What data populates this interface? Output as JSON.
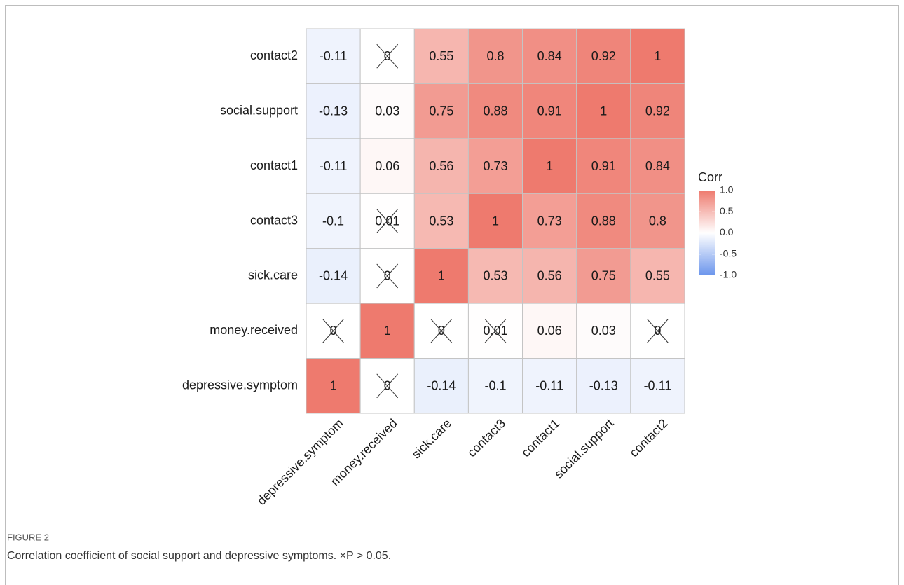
{
  "chart_data": {
    "type": "heatmap",
    "x": [
      "depressive.symptom",
      "money.received",
      "sick.care",
      "contact3",
      "contact1",
      "social.support",
      "contact2"
    ],
    "y": [
      "contact2",
      "social.support",
      "contact1",
      "contact3",
      "sick.care",
      "money.received",
      "depressive.symptom"
    ],
    "values": [
      [
        -0.11,
        0,
        0.55,
        0.8,
        0.84,
        0.92,
        1
      ],
      [
        -0.13,
        0.03,
        0.75,
        0.88,
        0.91,
        1,
        0.92
      ],
      [
        -0.11,
        0.06,
        0.56,
        0.73,
        1,
        0.91,
        0.84
      ],
      [
        -0.1,
        0.01,
        0.53,
        1,
        0.73,
        0.88,
        0.8
      ],
      [
        -0.14,
        0,
        1,
        0.53,
        0.56,
        0.75,
        0.55
      ],
      [
        0,
        1,
        0,
        0.01,
        0.06,
        0.03,
        0
      ],
      [
        1,
        0,
        -0.14,
        -0.1,
        -0.11,
        -0.13,
        -0.11
      ]
    ],
    "crossed": [
      [
        false,
        true,
        false,
        false,
        false,
        false,
        false
      ],
      [
        false,
        false,
        false,
        false,
        false,
        false,
        false
      ],
      [
        false,
        false,
        false,
        false,
        false,
        false,
        false
      ],
      [
        false,
        true,
        false,
        false,
        false,
        false,
        false
      ],
      [
        false,
        true,
        false,
        false,
        false,
        false,
        false
      ],
      [
        true,
        false,
        true,
        true,
        false,
        false,
        true
      ],
      [
        false,
        true,
        false,
        false,
        false,
        false,
        false
      ]
    ],
    "colors": {
      "low": "#6b95ec",
      "mid": "#ffffff",
      "high": "#ee7a6e"
    },
    "legend_title": "Corr",
    "clim": [
      -1,
      1
    ],
    "cticks": [
      {
        "value": 1,
        "label": "1.0"
      },
      {
        "value": 0.5,
        "label": "0.5"
      },
      {
        "value": 0,
        "label": "0.0"
      },
      {
        "value": -0.5,
        "label": "-0.5"
      },
      {
        "value": -1,
        "label": "-1.0"
      }
    ]
  },
  "figure_label": "FIGURE 2",
  "caption": "Correlation coefficient of social support and depressive symptoms. ×P > 0.05."
}
